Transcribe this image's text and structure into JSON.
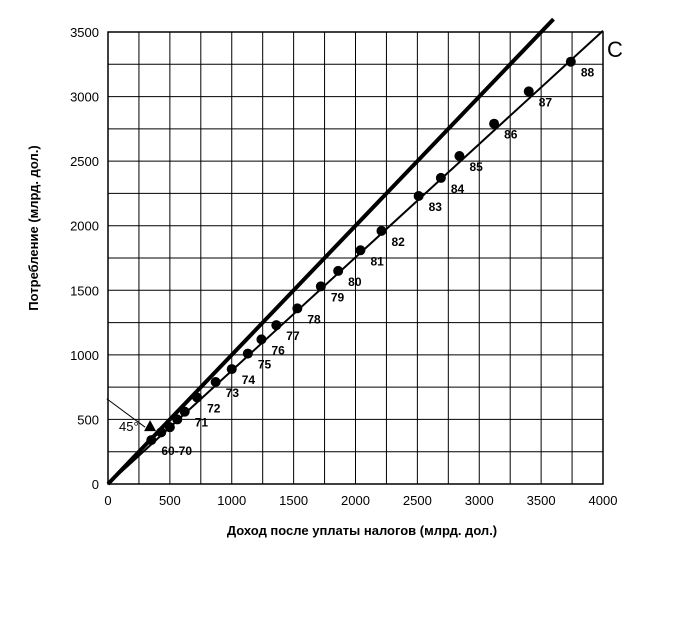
{
  "chart_data": {
    "type": "scatter",
    "title": "",
    "xlabel": "Доход после уплаты налогов (млрд. дол.)",
    "ylabel": "Потребление (млрд. дол.)",
    "xlim": [
      0,
      4000
    ],
    "ylim": [
      0,
      3500
    ],
    "x_ticks": [
      "0",
      "500",
      "1000",
      "1500",
      "2000",
      "2500",
      "3000",
      "3500",
      "4000"
    ],
    "y_ticks": [
      "0",
      "500",
      "1000",
      "1500",
      "2000",
      "2500",
      "3000",
      "3500"
    ],
    "grid": true,
    "line_45_label": "45°",
    "consumption_line_label": "C",
    "reference_45_line": {
      "x": [
        0,
        3600
      ],
      "y": [
        0,
        3600
      ]
    },
    "consumption_line": {
      "x": [
        0,
        4000
      ],
      "y": [
        0,
        3510
      ]
    },
    "points": [
      {
        "label": "60-70",
        "x": 350,
        "y": 340
      },
      {
        "label": "",
        "x": 430,
        "y": 400
      },
      {
        "label": "",
        "x": 500,
        "y": 440
      },
      {
        "label": "",
        "x": 560,
        "y": 500
      },
      {
        "label": "71",
        "x": 620,
        "y": 560
      },
      {
        "label": "72",
        "x": 720,
        "y": 670
      },
      {
        "label": "73",
        "x": 870,
        "y": 790
      },
      {
        "label": "74",
        "x": 1000,
        "y": 890
      },
      {
        "label": "75",
        "x": 1130,
        "y": 1010
      },
      {
        "label": "76",
        "x": 1240,
        "y": 1120
      },
      {
        "label": "77",
        "x": 1360,
        "y": 1230
      },
      {
        "label": "78",
        "x": 1530,
        "y": 1360
      },
      {
        "label": "79",
        "x": 1720,
        "y": 1530
      },
      {
        "label": "80",
        "x": 1860,
        "y": 1650
      },
      {
        "label": "81",
        "x": 2040,
        "y": 1810
      },
      {
        "label": "82",
        "x": 2210,
        "y": 1960
      },
      {
        "label": "83",
        "x": 2510,
        "y": 2230
      },
      {
        "label": "84",
        "x": 2690,
        "y": 2370
      },
      {
        "label": "85",
        "x": 2840,
        "y": 2540
      },
      {
        "label": "86",
        "x": 3120,
        "y": 2790
      },
      {
        "label": "87",
        "x": 3400,
        "y": 3040
      },
      {
        "label": "88",
        "x": 3740,
        "y": 3270
      }
    ]
  }
}
